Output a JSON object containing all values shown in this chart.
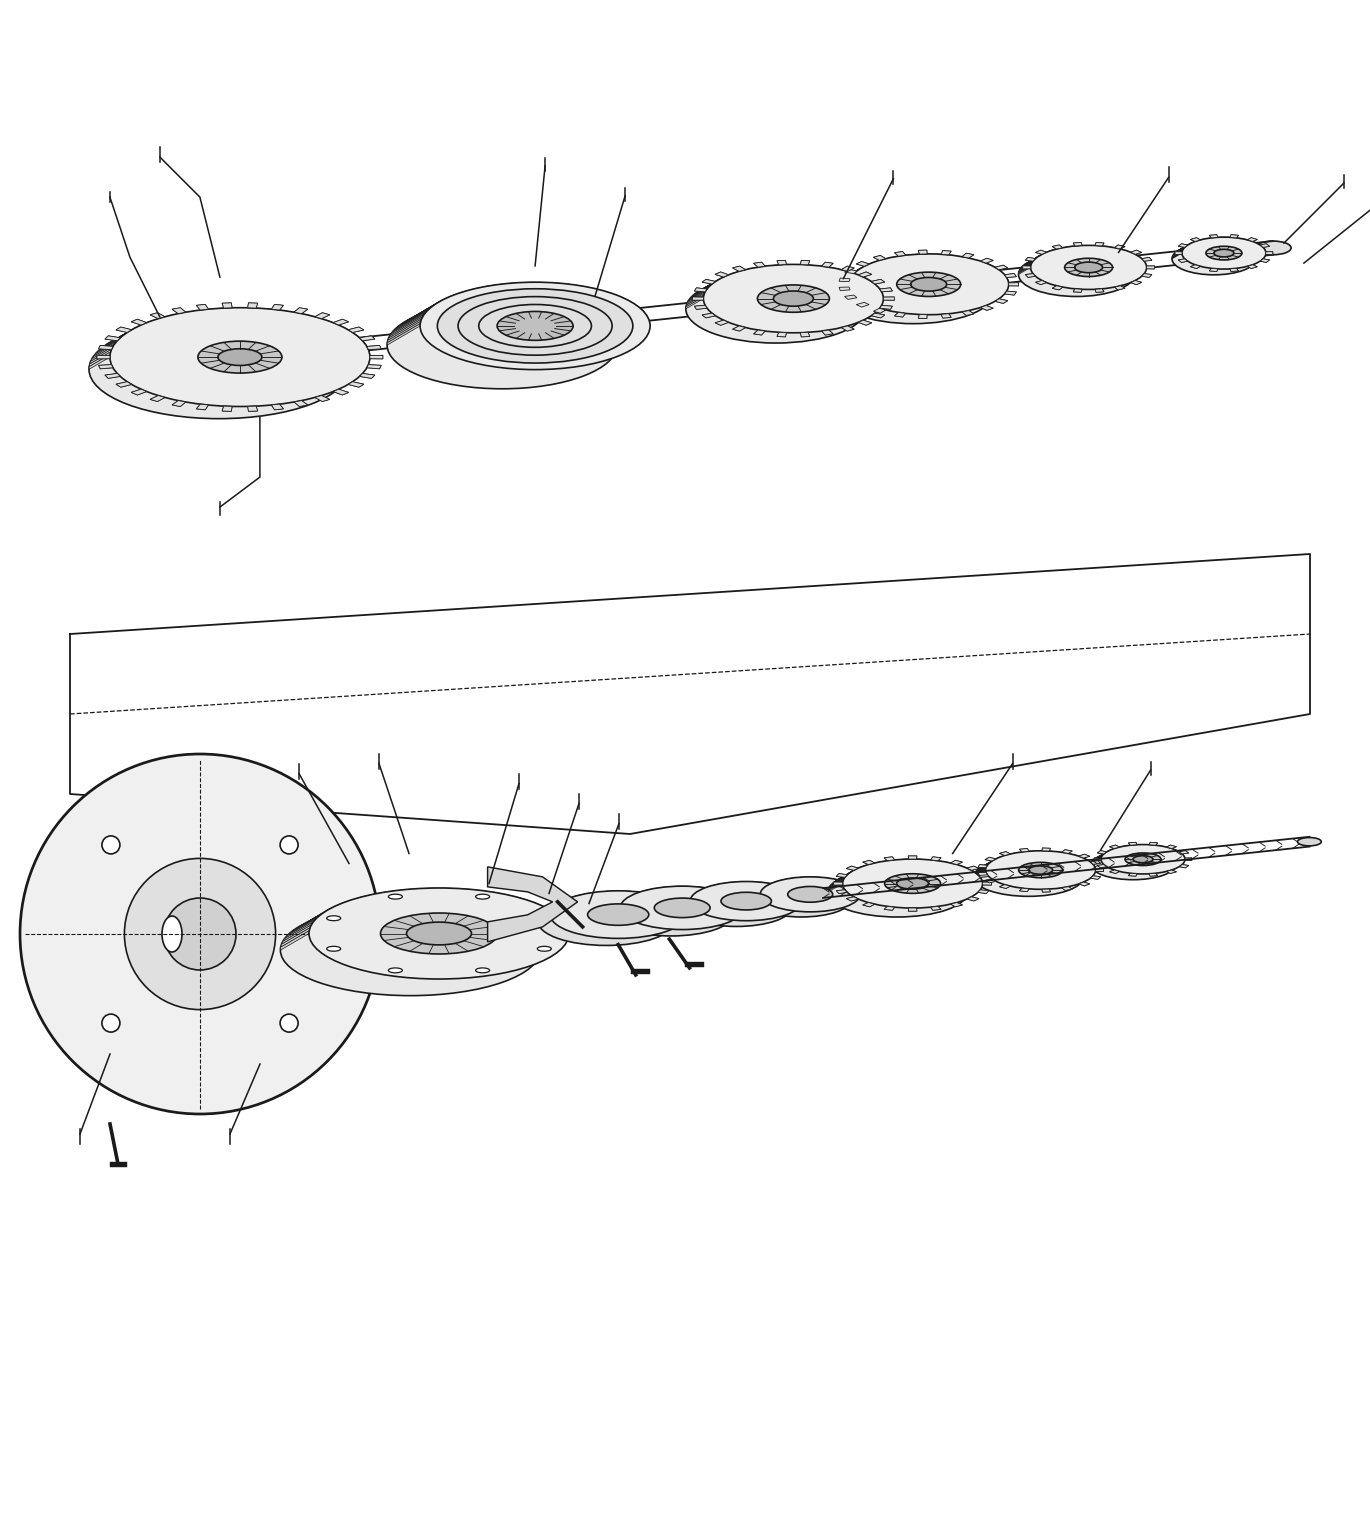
{
  "background_color": "#ffffff",
  "line_color": "#1a1a1a",
  "line_width": 1.3,
  "fig_width": 13.7,
  "fig_height": 15.34,
  "dpi": 100
}
